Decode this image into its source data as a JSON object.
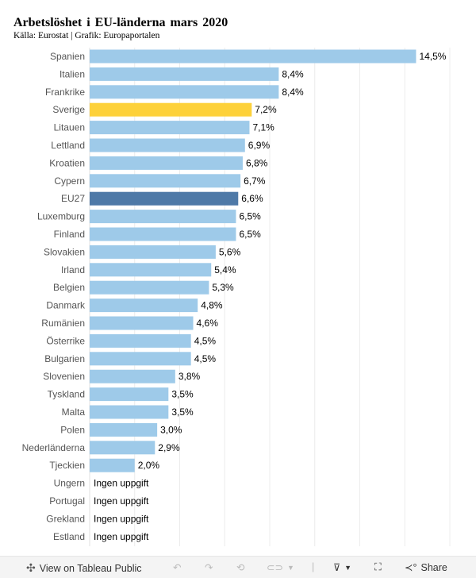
{
  "title": "Arbetslöshet i EU-länderna mars 2020",
  "subtitle": "Källa: Eurostat | Grafik: Europaportalen",
  "chart_data": {
    "type": "bar",
    "orientation": "horizontal",
    "title": "Arbetslöshet i EU-länderna mars 2020",
    "xlim": [
      0,
      16
    ],
    "grid": true,
    "colors": {
      "default": "#9ecae9",
      "highlight_sweden": "#fdd13a",
      "highlight_eu27": "#4e79a7"
    },
    "categories": [
      "Spanien",
      "Italien",
      "Frankrike",
      "Sverige",
      "Litauen",
      "Lettland",
      "Kroatien",
      "Cypern",
      "EU27",
      "Luxemburg",
      "Finland",
      "Slovakien",
      "Irland",
      "Belgien",
      "Danmark",
      "Rumänien",
      "Österrike",
      "Bulgarien",
      "Slovenien",
      "Tyskland",
      "Malta",
      "Polen",
      "Nederländerna",
      "Tjeckien",
      "Ungern",
      "Portugal",
      "Grekland",
      "Estland"
    ],
    "values": [
      14.5,
      8.4,
      8.4,
      7.2,
      7.1,
      6.9,
      6.8,
      6.7,
      6.6,
      6.5,
      6.5,
      5.6,
      5.4,
      5.3,
      4.8,
      4.6,
      4.5,
      4.5,
      3.8,
      3.5,
      3.5,
      3.0,
      2.9,
      2.0,
      null,
      null,
      null,
      null
    ],
    "labels": [
      "14,5%",
      "8,4%",
      "8,4%",
      "7,2%",
      "7,1%",
      "6,9%",
      "6,8%",
      "6,7%",
      "6,6%",
      "6,5%",
      "6,5%",
      "5,6%",
      "5,4%",
      "5,3%",
      "4,8%",
      "4,6%",
      "4,5%",
      "4,5%",
      "3,8%",
      "3,5%",
      "3,5%",
      "3,0%",
      "2,9%",
      "2,0%",
      "Ingen uppgift",
      "Ingen uppgift",
      "Ingen uppgift",
      "Ingen uppgift"
    ]
  },
  "footer": {
    "view_label": "View on Tableau Public",
    "share_label": "Share"
  }
}
